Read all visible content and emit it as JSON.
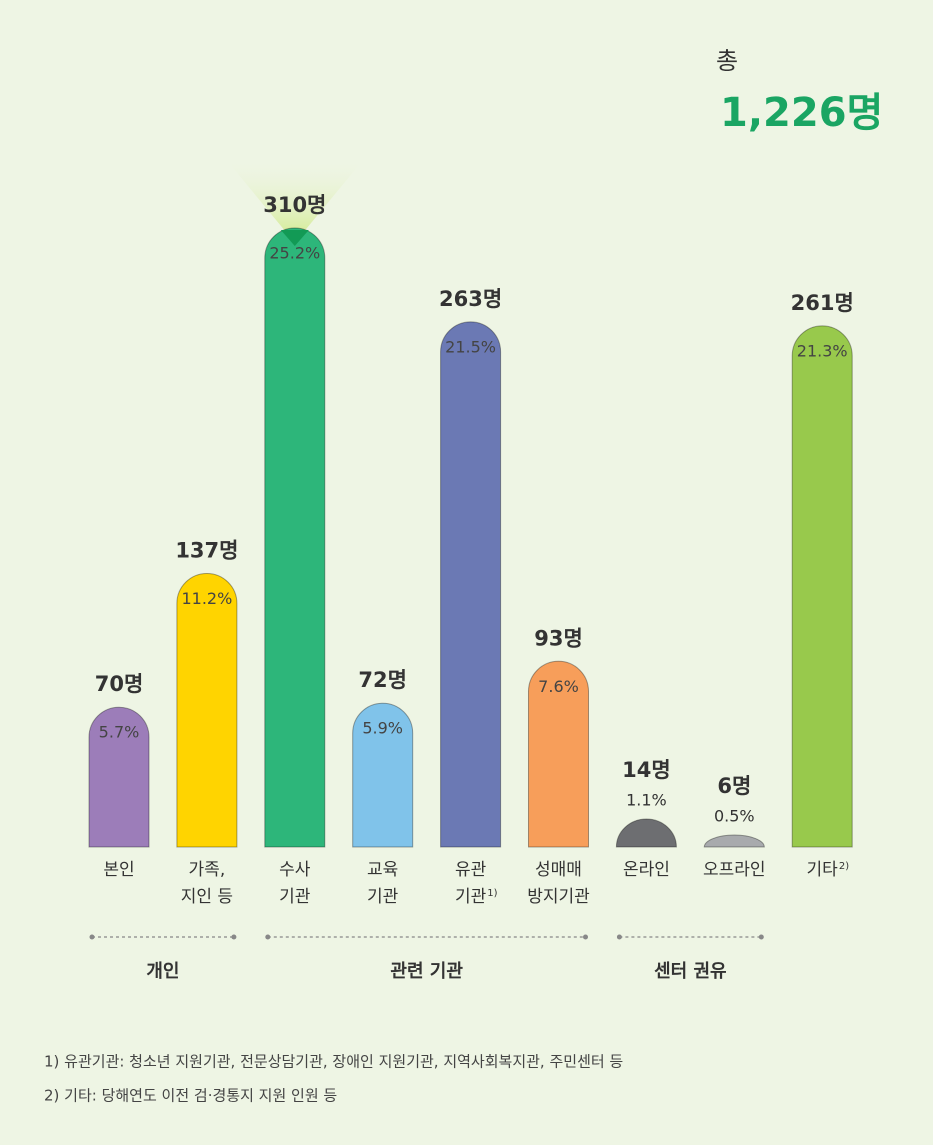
{
  "chart_data": {
    "type": "bar",
    "total_caption": "총",
    "total": 1226,
    "total_label": "1,226명",
    "categories": [
      [
        "본인"
      ],
      [
        "가족,",
        "지인 등"
      ],
      [
        "수사",
        "기관"
      ],
      [
        "교육",
        "기관"
      ],
      [
        "유관",
        "기관"
      ],
      [
        "성매매",
        "방지기관"
      ],
      [
        "온라인"
      ],
      [
        "오프라인"
      ],
      [
        "기타"
      ]
    ],
    "category_notes": {
      "4": "1)",
      "8": "2)"
    },
    "values": [
      70,
      137,
      310,
      72,
      263,
      93,
      14,
      6,
      261
    ],
    "value_labels": [
      "70명",
      "137명",
      "310명",
      "72명",
      "263명",
      "93명",
      "14명",
      "6명",
      "261명"
    ],
    "percentages": [
      5.7,
      11.2,
      25.2,
      5.9,
      21.5,
      7.6,
      1.1,
      0.5,
      21.3
    ],
    "percentage_labels": [
      "5.7%",
      "11.2%",
      "25.2%",
      "5.9%",
      "21.5%",
      "7.6%",
      "1.1%",
      "0.5%",
      "21.3%"
    ],
    "colors": [
      "#9c7db9",
      "#ffd400",
      "#2db67a",
      "#80c3ea",
      "#6b79b4",
      "#f79e5a",
      "#6d6e71",
      "#a8aaad",
      "#98c94c"
    ],
    "ylim": [
      0,
      310
    ],
    "groups": [
      {
        "label": "개인",
        "members": [
          0,
          1
        ]
      },
      {
        "label": "관련 기관",
        "members": [
          2,
          3,
          4,
          5
        ]
      },
      {
        "label": "센터 권유",
        "members": [
          6,
          7
        ]
      }
    ],
    "footnotes": [
      "1) 유관기관: 청소년 지원기관, 전문상담기관, 장애인 지원기관, 지역사회복지관, 주민센터 등",
      "2) 기타: 당해연도 이전 검·경통지 지원 인원 등"
    ]
  }
}
